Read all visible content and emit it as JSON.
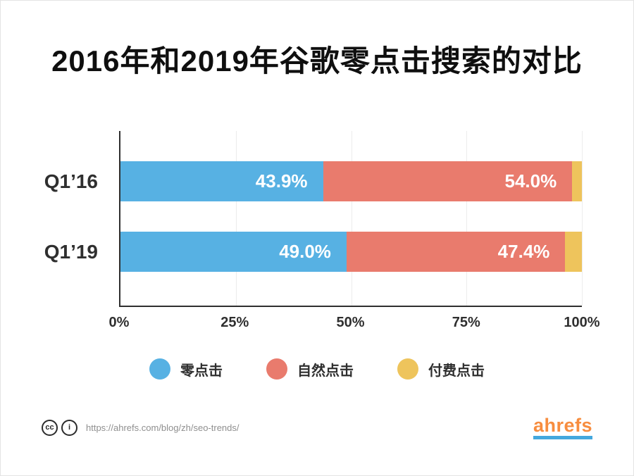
{
  "title": "2016年和2019年谷歌零点击搜索的对比",
  "chart_data": {
    "type": "bar",
    "orientation": "horizontal",
    "stacked": true,
    "title": "2016年和2019年谷歌零点击搜索的对比",
    "categories": [
      "Q1’16",
      "Q1’19"
    ],
    "series": [
      {
        "name": "零点击",
        "color": "#57b1e3",
        "values": [
          43.9,
          49.0
        ],
        "labels": [
          "43.9%",
          "49.0%"
        ]
      },
      {
        "name": "自然点击",
        "color": "#e97b6d",
        "values": [
          54.0,
          47.4
        ],
        "labels": [
          "54.0%",
          "47.4%"
        ]
      },
      {
        "name": "付费点击",
        "color": "#eec45c",
        "values": [
          2.1,
          3.6
        ],
        "labels": [
          "",
          ""
        ]
      }
    ],
    "xlim": [
      0,
      100
    ],
    "x_ticks": [
      "0%",
      "25%",
      "50%",
      "75%",
      "100%"
    ],
    "gridlines": [
      25,
      50,
      75,
      100
    ],
    "grid": true,
    "legend_position": "bottom"
  },
  "footer": {
    "cc_label": "cc",
    "by_label": "i",
    "url": "https://ahrefs.com/blog/zh/seo-trends/",
    "brand": "ahrefs"
  }
}
